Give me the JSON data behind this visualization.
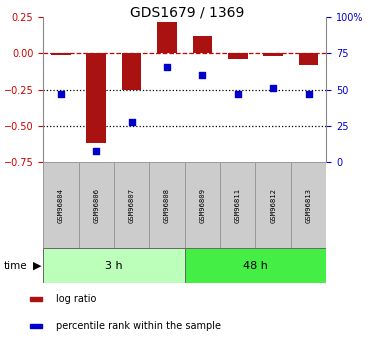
{
  "title": "GDS1679 / 1369",
  "samples": [
    "GSM96804",
    "GSM96806",
    "GSM96807",
    "GSM96808",
    "GSM96809",
    "GSM96811",
    "GSM96812",
    "GSM96813"
  ],
  "log_ratio": [
    -0.01,
    -0.62,
    -0.25,
    0.22,
    0.12,
    -0.04,
    -0.02,
    -0.08
  ],
  "percentile_rank": [
    47,
    8,
    28,
    66,
    60,
    47,
    51,
    47
  ],
  "groups": [
    {
      "label": "3 h",
      "indices": [
        0,
        1,
        2,
        3
      ],
      "color": "#bbffbb"
    },
    {
      "label": "48 h",
      "indices": [
        4,
        5,
        6,
        7
      ],
      "color": "#44ee44"
    }
  ],
  "left_ylabel_color": "#cc0000",
  "right_ylabel_color": "#0000cc",
  "bar_color": "#aa1111",
  "dot_color": "#0000cc",
  "left_ylim": [
    -0.75,
    0.25
  ],
  "right_ylim": [
    0,
    100
  ],
  "left_yticks": [
    -0.75,
    -0.5,
    -0.25,
    0,
    0.25
  ],
  "right_yticks": [
    0,
    25,
    50,
    75,
    100
  ],
  "hline_y": [
    0,
    -0.25,
    -0.5
  ],
  "hline_styles": [
    "--",
    ":",
    ":"
  ],
  "hline_colors": [
    "#cc0000",
    "black",
    "black"
  ],
  "time_label": "time",
  "legend_items": [
    {
      "label": "log ratio",
      "color": "#aa1111"
    },
    {
      "label": "percentile rank within the sample",
      "color": "#0000cc"
    }
  ],
  "bar_width": 0.55
}
